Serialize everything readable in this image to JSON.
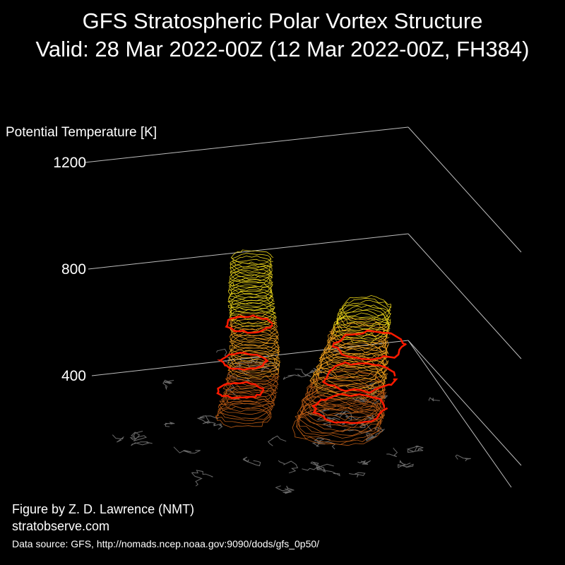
{
  "header": {
    "title": "GFS Stratospheric Polar Vortex Structure",
    "subtitle": "Valid: 28 Mar 2022-00Z  (12 Mar 2022-00Z, FH384)"
  },
  "chart_data": {
    "type": "3d-isosurface",
    "zlabel": "Potential Temperature [K]",
    "z_ticks": [
      "400",
      "800",
      "1200"
    ],
    "z_tick_values": [
      400,
      800,
      1200
    ],
    "colors": {
      "low_levels": "#b85a14",
      "mid_levels": "#e89a1c",
      "high_levels": "#e8d21a",
      "highlight_contour": "#ff1a00",
      "coastline": "#6a6a6a",
      "axis": "#bdbdbd"
    },
    "vortex_lobes": [
      {
        "name": "",
        "z_min": 350,
        "z_max": 950
      },
      {
        "name": "",
        "z_min": 350,
        "z_max": 800
      }
    ]
  },
  "credits": {
    "author": "Figure by Z. D. Lawrence (NMT)",
    "site": "stratobserve.com",
    "source": "Data source: GFS, http://nomads.ncep.noaa.gov:9090/dods/gfs_0p50/"
  }
}
